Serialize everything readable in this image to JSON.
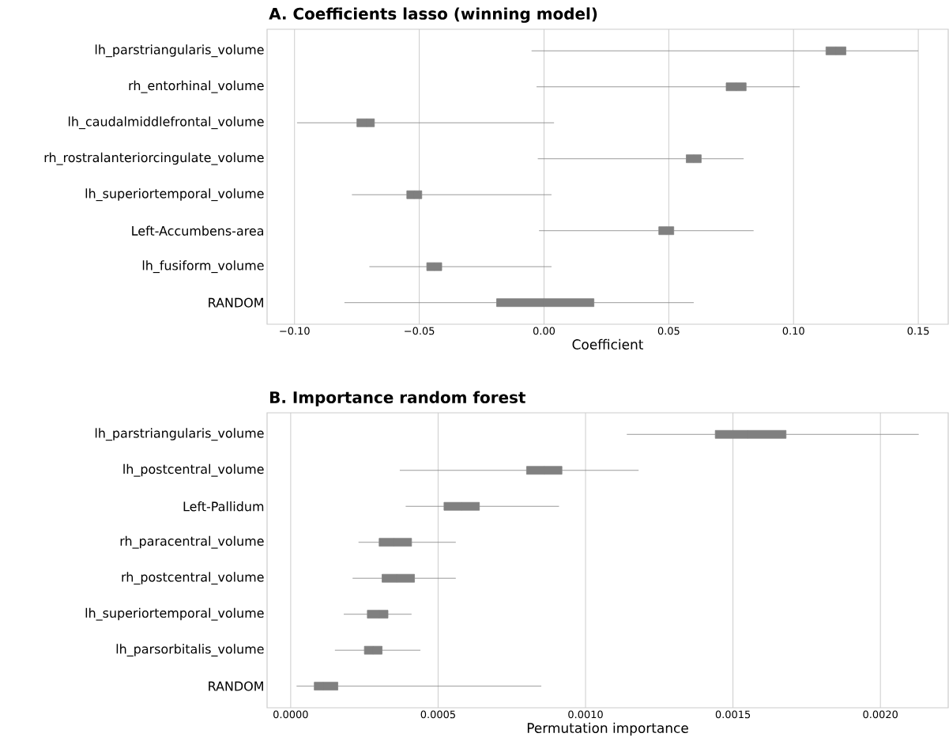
{
  "chart_data": [
    {
      "type": "box",
      "orientation": "horizontal",
      "title": "A. Coefficients lasso (winning model)",
      "xlabel": "Coefficient",
      "grid": "x",
      "categories": [
        "lh_parstriangularis_volume",
        "rh_entorhinal_volume",
        "lh_caudalmiddlefrontal_volume",
        "rh_rostralanteriorcingulate_volume",
        "lh_superiortemporal_volume",
        "Left-Accumbens-area",
        "lh_fusiform_volume",
        "RANDOM"
      ],
      "xlim": [
        -0.111,
        0.162
      ],
      "xticks": [
        {
          "value": -0.1,
          "label": "−0.10"
        },
        {
          "value": -0.05,
          "label": "−0.05"
        },
        {
          "value": 0,
          "label": "0.00"
        },
        {
          "value": 0.05,
          "label": "0.05"
        },
        {
          "value": 0.1,
          "label": "0.10"
        },
        {
          "value": 0.15,
          "label": "0.15"
        }
      ],
      "series": [
        {
          "color": "#808080",
          "boxes": [
            {
              "low": -0.005,
              "q1": 0.113,
              "median": 0.117,
              "q3": 0.121,
              "high": 0.15
            },
            {
              "low": -0.003,
              "q1": 0.073,
              "median": 0.077,
              "q3": 0.081,
              "high": 0.1025
            },
            {
              "low": -0.099,
              "q1": -0.075,
              "median": -0.071,
              "q3": -0.068,
              "high": 0.004
            },
            {
              "low": -0.0025,
              "q1": 0.057,
              "median": 0.06,
              "q3": 0.063,
              "high": 0.08
            },
            {
              "low": -0.077,
              "q1": -0.055,
              "median": -0.052,
              "q3": -0.049,
              "high": 0.003
            },
            {
              "low": -0.002,
              "q1": 0.046,
              "median": 0.049,
              "q3": 0.052,
              "high": 0.084
            },
            {
              "low": -0.07,
              "q1": -0.047,
              "median": -0.044,
              "q3": -0.041,
              "high": 0.003
            },
            {
              "low": -0.08,
              "q1": -0.019,
              "median": 0.0,
              "q3": 0.02,
              "high": 0.06
            }
          ]
        }
      ]
    },
    {
      "type": "box",
      "orientation": "horizontal",
      "title": "B. Importance random forest",
      "xlabel": "Permutation importance",
      "grid": "x",
      "categories": [
        "lh_parstriangularis_volume",
        "lh_postcentral_volume",
        "Left-Pallidum",
        "rh_paracentral_volume",
        "rh_postcentral_volume",
        "lh_superiortemporal_volume",
        "lh_parsorbitalis_volume",
        "RANDOM"
      ],
      "xlim": [
        -8e-05,
        0.00223
      ],
      "xticks": [
        {
          "value": 0,
          "label": "0.0000"
        },
        {
          "value": 0.0005,
          "label": "0.0005"
        },
        {
          "value": 0.001,
          "label": "0.0010"
        },
        {
          "value": 0.0015,
          "label": "0.0015"
        },
        {
          "value": 0.002,
          "label": "0.0020"
        }
      ],
      "series": [
        {
          "color": "#808080",
          "boxes": [
            {
              "low": 0.00114,
              "q1": 0.00144,
              "median": 0.00155,
              "q3": 0.00168,
              "high": 0.00213
            },
            {
              "low": 0.00037,
              "q1": 0.0008,
              "median": 0.00086,
              "q3": 0.00092,
              "high": 0.00118
            },
            {
              "low": 0.00039,
              "q1": 0.00052,
              "median": 0.00058,
              "q3": 0.00064,
              "high": 0.00091
            },
            {
              "low": 0.00023,
              "q1": 0.0003,
              "median": 0.00035,
              "q3": 0.00041,
              "high": 0.00056
            },
            {
              "low": 0.00021,
              "q1": 0.00031,
              "median": 0.00036,
              "q3": 0.00042,
              "high": 0.00056
            },
            {
              "low": 0.00018,
              "q1": 0.00026,
              "median": 0.0003,
              "q3": 0.00033,
              "high": 0.00041
            },
            {
              "low": 0.00015,
              "q1": 0.00025,
              "median": 0.00028,
              "q3": 0.00031,
              "high": 0.00044
            },
            {
              "low": 2e-05,
              "q1": 8e-05,
              "median": 0.00011,
              "q3": 0.00016,
              "high": 0.00085
            }
          ]
        }
      ]
    }
  ]
}
